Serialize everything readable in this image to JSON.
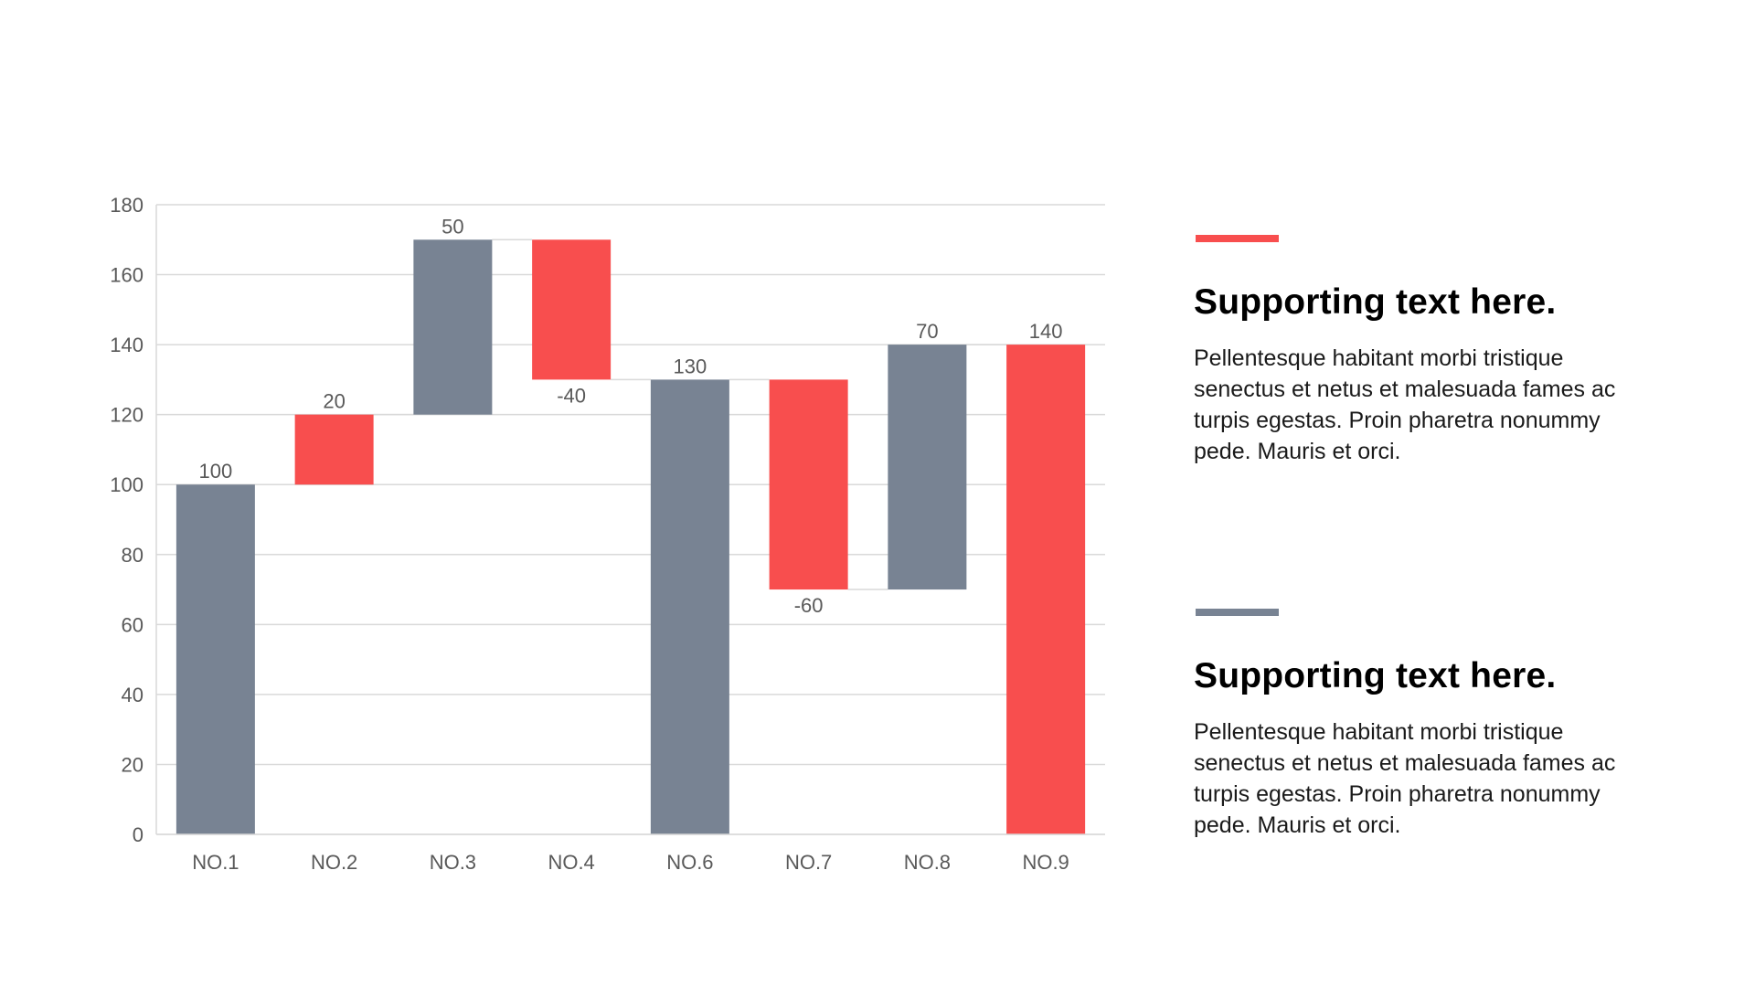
{
  "colors": {
    "increase": "#F84E4E",
    "total": "#788393",
    "grid": "#D9D9D9",
    "connector": "#D9D9D9",
    "text": "#595959"
  },
  "chart_data": {
    "type": "bar",
    "subtype": "waterfall",
    "title": "",
    "xlabel": "",
    "ylabel": "",
    "ylim": [
      0,
      180
    ],
    "yticks": [
      0,
      20,
      40,
      60,
      80,
      100,
      120,
      140,
      160,
      180
    ],
    "ytick_labels": [
      "0",
      "20",
      "40",
      "60",
      "80",
      "100",
      "120",
      "140",
      "160",
      "180"
    ],
    "grid": true,
    "legend": "none",
    "categories": [
      "NO.1",
      "NO.2",
      "NO.3",
      "NO.4",
      "NO.6",
      "NO.7",
      "NO.8",
      "NO.9"
    ],
    "values": [
      100,
      20,
      50,
      -40,
      130,
      -60,
      70,
      140
    ],
    "data_labels": [
      "100",
      "20",
      "50",
      "-40",
      "130",
      "-60",
      "70",
      "140"
    ],
    "bars": [
      {
        "category": "NO.1",
        "start": 0,
        "end": 100,
        "color_key": "total",
        "label_position": "above"
      },
      {
        "category": "NO.2",
        "start": 100,
        "end": 120,
        "color_key": "increase",
        "label_position": "above"
      },
      {
        "category": "NO.3",
        "start": 120,
        "end": 170,
        "color_key": "total",
        "label_position": "above"
      },
      {
        "category": "NO.4",
        "start": 130,
        "end": 170,
        "color_key": "increase",
        "label_position": "below"
      },
      {
        "category": "NO.6",
        "start": 0,
        "end": 130,
        "color_key": "total",
        "label_position": "above"
      },
      {
        "category": "NO.7",
        "start": 70,
        "end": 130,
        "color_key": "increase",
        "label_position": "below"
      },
      {
        "category": "NO.8",
        "start": 70,
        "end": 140,
        "color_key": "total",
        "label_position": "above"
      },
      {
        "category": "NO.9",
        "start": 0,
        "end": 140,
        "color_key": "increase",
        "label_position": "above"
      }
    ],
    "connectors": [
      {
        "from": "NO.1",
        "to": "NO.2",
        "level": 100
      },
      {
        "from": "NO.2",
        "to": "NO.3",
        "level": 120
      },
      {
        "from": "NO.3",
        "to": "NO.4",
        "level": 170
      },
      {
        "from": "NO.4",
        "to": "NO.6",
        "level": 130
      },
      {
        "from": "NO.6",
        "to": "NO.7",
        "level": 130
      },
      {
        "from": "NO.7",
        "to": "NO.8",
        "level": 70
      },
      {
        "from": "NO.8",
        "to": "NO.9",
        "level": 140
      }
    ]
  },
  "panels": [
    {
      "accent_color": "#F84E4E",
      "heading": "Supporting text here.",
      "body_lines": [
        "Pellentesque  habitant morbi tristique",
        "senectus  et netus et malesuada fames ac",
        "turpis  egestas. Proin pharetra  nonummy",
        "pede. Mauris  et orci."
      ]
    },
    {
      "accent_color": "#788393",
      "heading": "Supporting text here.",
      "body_lines": [
        "Pellentesque  habitant morbi tristique",
        "senectus  et netus et malesuada fames ac",
        "turpis  egestas. Proin pharetra  nonummy",
        "pede. Mauris  et orci."
      ]
    }
  ]
}
